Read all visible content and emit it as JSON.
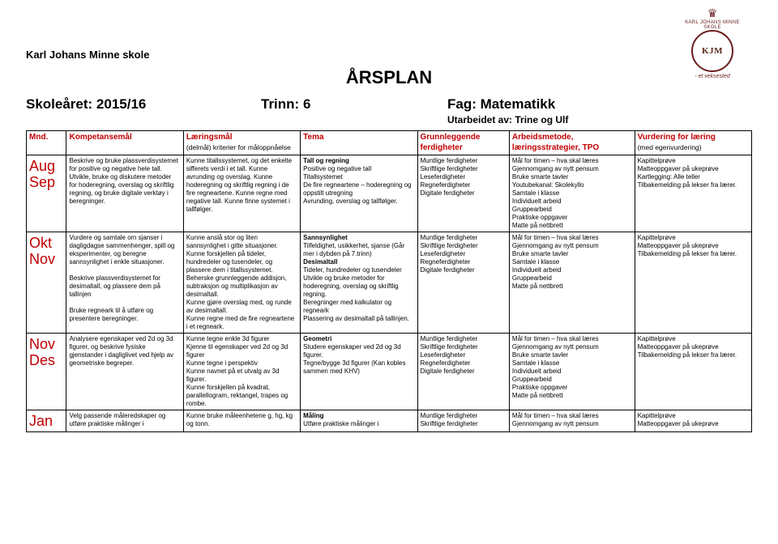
{
  "school": "Karl Johans Minne skole",
  "title": "ÅRSPLAN",
  "logo": {
    "monogram": "KJM",
    "motto": "- et veksested",
    "ringText": "KARL JOHANS MINNE SKOLE"
  },
  "meta": {
    "year": "Skoleåret: 2015/16",
    "grade": "Trinn: 6",
    "subject": "Fag: Matematikk",
    "author": "Utarbeidet av: Trine og Ulf"
  },
  "headers": {
    "mnd": "Mnd.",
    "komp": "Kompetansemål",
    "laer": "Læringsmål",
    "laer_sub": "(delmål) kriterier for måloppnåelse",
    "tema": "Tema",
    "grunn": "Grunnleggende ferdigheter",
    "arb": "Arbeidsmetode, læringsstrategier, TPO",
    "vurd": "Vurdering for læring",
    "vurd_sub": "(med egenvurdering)"
  },
  "rows": [
    {
      "months": "Aug\nSep",
      "komp": "Beskrive og bruke plassverdisystemet for positive og negative hele tall. Utvikle, bruke og diskutere metoder for hoderegning, overslag og skriftlig regning, og bruke digitale verktøy i beregninger.",
      "laer": "Kunne titallssystemet, og det enkelte sifferets verdi i et tall. Kunne avrunding og overslag. Kunne hoderegning og skriftlig regning i de fire regneartene. Kunne regne med negative tall. Kunne finne systemet i tallfølger.",
      "tema_bold": "Tall og regning",
      "tema_rest": "Positive og negative tall\nTitallsystemet\nDe fire regneartene – hoderegning og oppstilt utregning\nAvrunding, overslag og tallfølger.",
      "grunn": "Muntlige ferdigheter\nSkriftlige ferdigheter\nLeseferdigheter\nRegneferdigheter\nDigitale ferdigheter",
      "arb": "Mål for timen – hva skal læres\nGjennomgang av nytt pensum\nBruke smarte tavler\nYoutubekanal: Skolekyllo\nSamtale i klasse\nIndividuelt arbeid\nGruppearbeid\nPraktiske oppgaver\nMatte på nettbrett",
      "vurd": "Kapittelprøve\nMatteoppgaver på ukeprøve\nKartlegging: Alle teller\nTilbakemelding på lekser fra lærer."
    },
    {
      "months": "Okt\nNov",
      "komp": "Vurdere og samtale om sjanser i dagligdagse sammenhenger, spill og eksperimenter, og beregne sannsynlighet i enkle situasjoner.\n\nBeskrive plassverdisystemet for desimaltall, og plassere dem på tallinjen\n\nBruke regneark til å utføre og presentere beregninger.",
      "laer": "Kunne anslå stor og liten sannsynlighet i gitte situasjoner.\nKunne forskjellen på tideler, hundredeler og tusendeler, og plassere dem i titallssystemet.\nBeherske grunnleggende addisjon, subtraksjon og multiplikasjon av desimaltall.\nKunne gjøre overslag med, og runde av desimaltall.\nKunne regne med de fire regneartene i et regneark.",
      "tema_bold": "Sannsynlighet",
      "tema_mid": "Tilfeldighet, usikkerhet, sjanse (Går mer i dybden på 7.trinn)",
      "tema_bold2": "Desimaltall",
      "tema_rest2": "Tideler, hundredeler og tusendeler\nUtvikle og bruke metoder for hoderegning, overslag og skriftlig regning.\nBeregninger med kalkulator og regneark\nPlassering av desimaltall på tallinjen.",
      "grunn": "Muntlige ferdigheter\nSkriftlige ferdigheter\nLeseferdigheter\nRegneferdigheter\nDigitale ferdigheter",
      "arb": "Mål for timen – hva skal læres\nGjennomgang av nytt pensum\nBruke smarte tavler\nSamtale i klasse\nIndividuelt arbeid\nGruppearbeid\nMatte på nettbrett",
      "vurd": "Kapittelprøve\nMatteoppgaver på ukeprøve\nTilbakemelding på lekser fra lærer."
    },
    {
      "months": "Nov\nDes",
      "komp": "Analysere egenskaper ved 2d og 3d figurer, og beskrive fysiske gjenstander i dagliglivet ved hjelp av geometriske begreper.",
      "laer": "Kunne tegne enkle 3d figurer\nKjenne til egenskaper ved 2d og 3d figurer\nKunne tegne i perspektiv\nKunne navnet på et utvalg av 3d figurer.\nKunne forskjellen på kvadrat, parallellogram, rektangel, trapes og rombe.",
      "tema_bold": "Geometri",
      "tema_rest": "Studere egenskaper ved 2d og 3d figurer.\nTegne/bygge 3d figurer (Kan kobles sammen med KHV)",
      "grunn": "Muntlige ferdigheter\nSkriftlige ferdigheter\nLeseferdigheter\nRegneferdigheter\nDigitale ferdigheter",
      "arb": "Mål for timen – hva skal læres\nGjennomgang av nytt pensum\nBruke smarte tavler\nSamtale i klasse\nIndividuelt arbeid\nGruppearbeid\nPraktiske oppgaver\nMatte på nettbrett",
      "vurd": "Kapittelprøve\nMatteoppgaver på ukeprøve\nTilbakemelding på lekser fra lærer."
    },
    {
      "months": "Jan",
      "komp": "Velg passende måleredskaper og utføre praktiske målinger i",
      "laer": "Kunne bruke måleenhetene g, hg, kg og tonn.",
      "tema_bold": "Måling",
      "tema_rest": "Utføre praktiske målinger i",
      "grunn": "Muntlige ferdigheter\nSkriftlige ferdigheter",
      "arb": "Mål for timen – hva skal læres\nGjennomgang av nytt pensum",
      "vurd": "Kapittelprøve\nMatteoppgaver på ukeprøve"
    }
  ]
}
